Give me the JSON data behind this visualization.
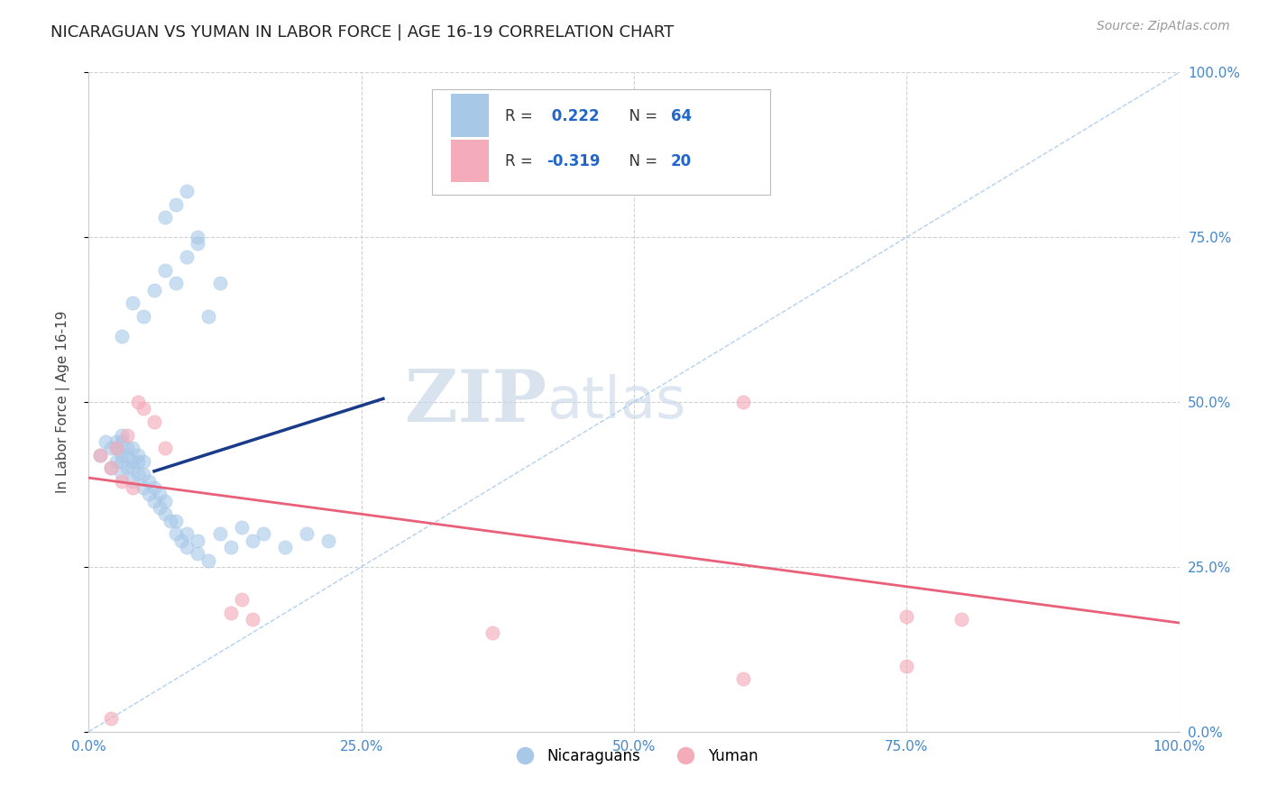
{
  "title": "NICARAGUAN VS YUMAN IN LABOR FORCE | AGE 16-19 CORRELATION CHART",
  "source_text": "Source: ZipAtlas.com",
  "ylabel": "In Labor Force | Age 16-19",
  "xlim": [
    0,
    1
  ],
  "ylim": [
    0,
    1
  ],
  "x_tick_labels": [
    "0.0%",
    "25.0%",
    "50.0%",
    "75.0%",
    "100.0%"
  ],
  "x_tick_positions": [
    0,
    0.25,
    0.5,
    0.75,
    1.0
  ],
  "y_tick_labels_right": [
    "0.0%",
    "25.0%",
    "50.0%",
    "75.0%",
    "100.0%"
  ],
  "y_tick_positions": [
    0,
    0.25,
    0.5,
    0.75,
    1.0
  ],
  "blue_color": "#A8C8E8",
  "pink_color": "#F4ACBA",
  "blue_line_color": "#1A3A8A",
  "pink_line_color": "#E8607A",
  "diag_line_color": "#AACCEE",
  "blue_R": 0.222,
  "blue_N": 64,
  "pink_R": -0.319,
  "pink_N": 20,
  "watermark_zip": "ZIP",
  "watermark_atlas": "atlas",
  "grid_color": "#CCCCCC",
  "background_color": "#FFFFFF",
  "title_fontsize": 13,
  "tick_color": "#4488CC",
  "legend_text_color": "#333333",
  "legend_rn_color": "#2266CC",
  "blue_line_x": [
    0.06,
    0.27
  ],
  "blue_line_y": [
    0.395,
    0.505
  ],
  "pink_line_x": [
    0.0,
    1.0
  ],
  "pink_line_y": [
    0.385,
    0.165
  ],
  "dot_size": 120,
  "blue_scatter_x": [
    0.01,
    0.015,
    0.02,
    0.02,
    0.025,
    0.025,
    0.025,
    0.03,
    0.03,
    0.03,
    0.03,
    0.03,
    0.035,
    0.035,
    0.035,
    0.04,
    0.04,
    0.04,
    0.04,
    0.045,
    0.045,
    0.045,
    0.05,
    0.05,
    0.05,
    0.055,
    0.055,
    0.06,
    0.06,
    0.065,
    0.065,
    0.07,
    0.07,
    0.075,
    0.08,
    0.08,
    0.085,
    0.09,
    0.09,
    0.1,
    0.1,
    0.11,
    0.12,
    0.13,
    0.14,
    0.15,
    0.16,
    0.18,
    0.2,
    0.22,
    0.03,
    0.04,
    0.05,
    0.06,
    0.07,
    0.08,
    0.09,
    0.1,
    0.11,
    0.12,
    0.07,
    0.08,
    0.09,
    0.1
  ],
  "blue_scatter_y": [
    0.42,
    0.44,
    0.4,
    0.43,
    0.41,
    0.43,
    0.44,
    0.39,
    0.41,
    0.42,
    0.44,
    0.45,
    0.4,
    0.42,
    0.43,
    0.38,
    0.4,
    0.41,
    0.43,
    0.39,
    0.41,
    0.42,
    0.37,
    0.39,
    0.41,
    0.36,
    0.38,
    0.35,
    0.37,
    0.34,
    0.36,
    0.33,
    0.35,
    0.32,
    0.3,
    0.32,
    0.29,
    0.28,
    0.3,
    0.27,
    0.29,
    0.26,
    0.3,
    0.28,
    0.31,
    0.29,
    0.3,
    0.28,
    0.3,
    0.29,
    0.6,
    0.65,
    0.63,
    0.67,
    0.7,
    0.68,
    0.72,
    0.74,
    0.63,
    0.68,
    0.78,
    0.8,
    0.82,
    0.75
  ],
  "pink_scatter_x": [
    0.01,
    0.02,
    0.025,
    0.03,
    0.035,
    0.04,
    0.045,
    0.05,
    0.06,
    0.07,
    0.13,
    0.14,
    0.15,
    0.37,
    0.6,
    0.75,
    0.8,
    0.6,
    0.75,
    0.02
  ],
  "pink_scatter_y": [
    0.42,
    0.4,
    0.43,
    0.38,
    0.45,
    0.37,
    0.5,
    0.49,
    0.47,
    0.43,
    0.18,
    0.2,
    0.17,
    0.15,
    0.5,
    0.175,
    0.17,
    0.08,
    0.1,
    0.02
  ]
}
